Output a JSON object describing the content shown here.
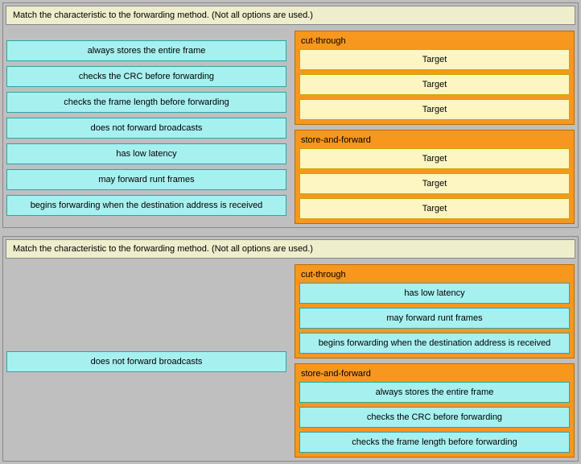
{
  "instruction": "Match the characteristic to the forwarding method. (Not all options are used.)",
  "colors": {
    "page_bg": "#bfbfbf",
    "instruction_bg": "#eeeecd",
    "instruction_border": "#888888",
    "drag_bg": "#a7f0f0",
    "drag_border": "#2aa6a6",
    "group_bg": "#f7971e",
    "group_border": "#c06a00",
    "target_bg": "#fdf6c2",
    "target_border": "#c9a800"
  },
  "top": {
    "items": [
      "always stores the entire frame",
      "checks the CRC before forwarding",
      "checks the frame length before forwarding",
      "does not forward broadcasts",
      "has low latency",
      "may forward runt frames",
      "begins forwarding when the destination address is received"
    ],
    "groups": [
      {
        "title": "cut-through",
        "slots": [
          "Target",
          "Target",
          "Target"
        ]
      },
      {
        "title": "store-and-forward",
        "slots": [
          "Target",
          "Target",
          "Target"
        ]
      }
    ]
  },
  "bottom": {
    "remaining": [
      "does not forward broadcasts"
    ],
    "groups": [
      {
        "title": "cut-through",
        "answers": [
          "has low latency",
          "may forward runt frames",
          "begins forwarding when the destination address is received"
        ]
      },
      {
        "title": "store-and-forward",
        "answers": [
          "always stores the entire frame",
          "checks the CRC before forwarding",
          "checks the frame length before forwarding"
        ]
      }
    ]
  }
}
